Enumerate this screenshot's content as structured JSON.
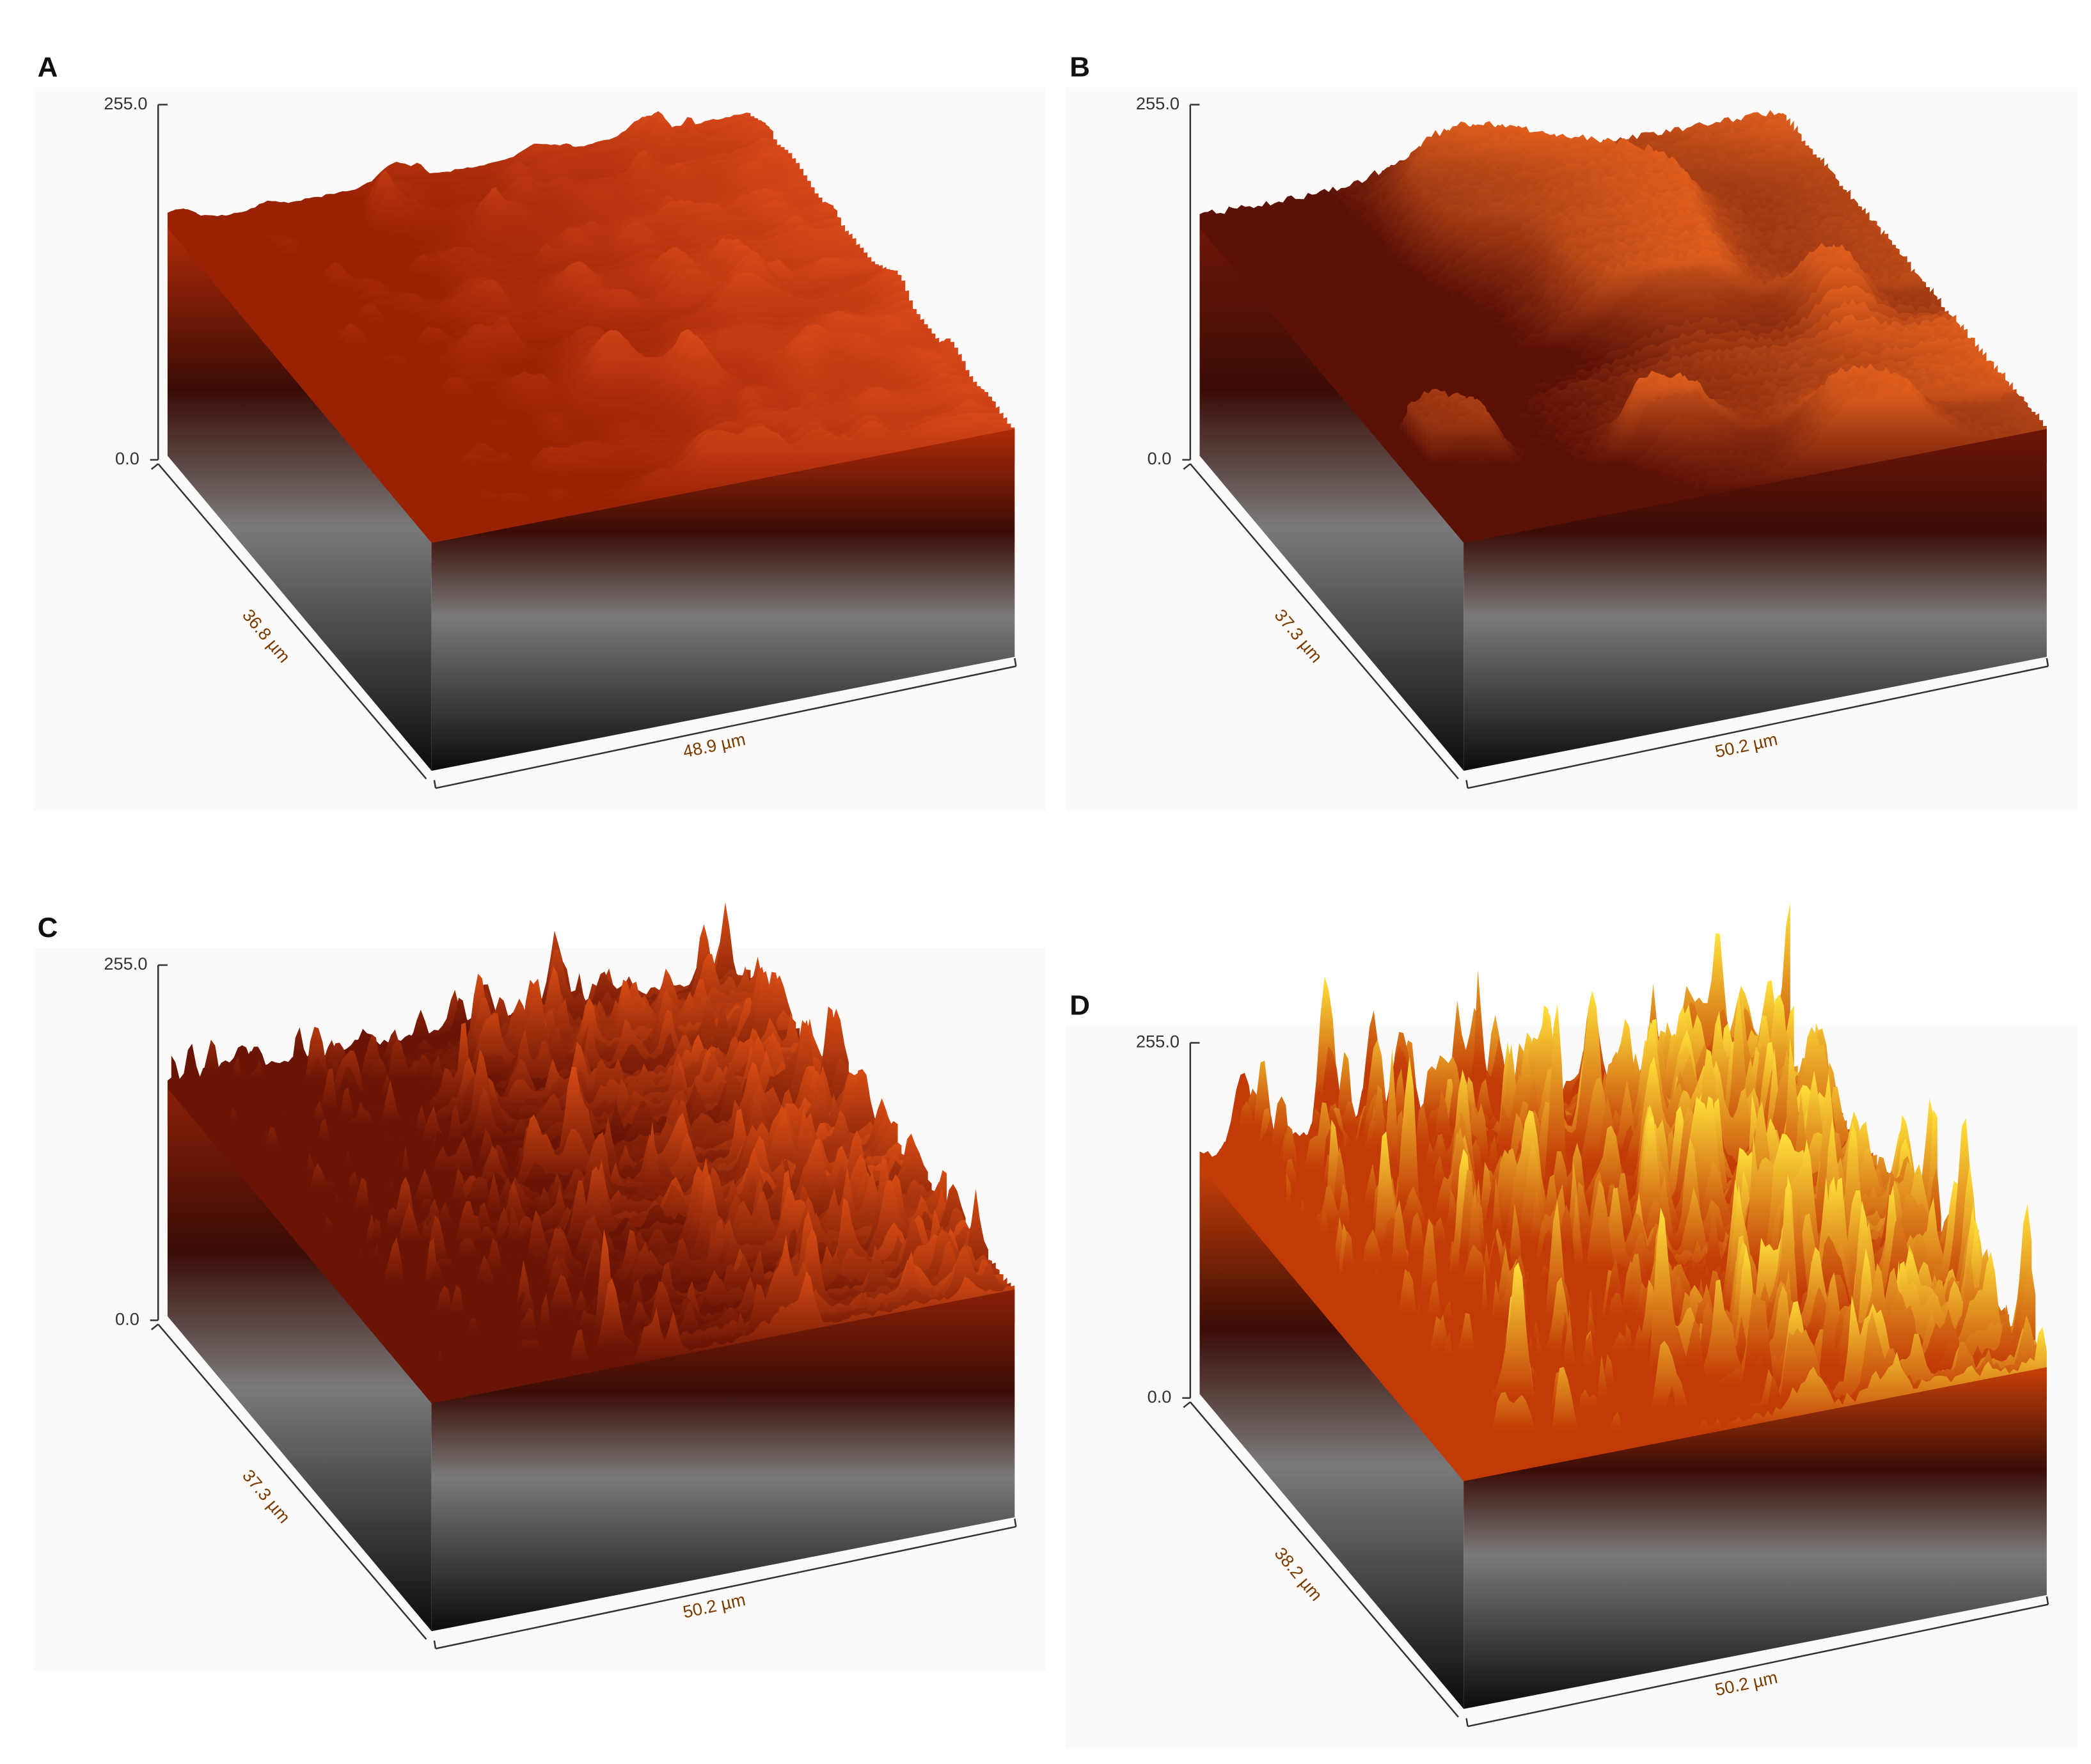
{
  "panels": [
    {
      "label": "A",
      "z_max": "255.0",
      "z_min": "0.0",
      "y_extent": "36.8 µm",
      "x_extent": "48.9 µm"
    },
    {
      "label": "B",
      "z_max": "255.0",
      "z_min": "0.0",
      "y_extent": "37.3 µm",
      "x_extent": "50.2 µm"
    },
    {
      "label": "C",
      "z_max": "255.0",
      "z_min": "0.0",
      "y_extent": "37.3 µm",
      "x_extent": "50.2 µm"
    },
    {
      "label": "D",
      "z_max": "255.0",
      "z_min": "0.0",
      "y_extent": "38.2 µm",
      "x_extent": "50.2 µm"
    }
  ]
}
